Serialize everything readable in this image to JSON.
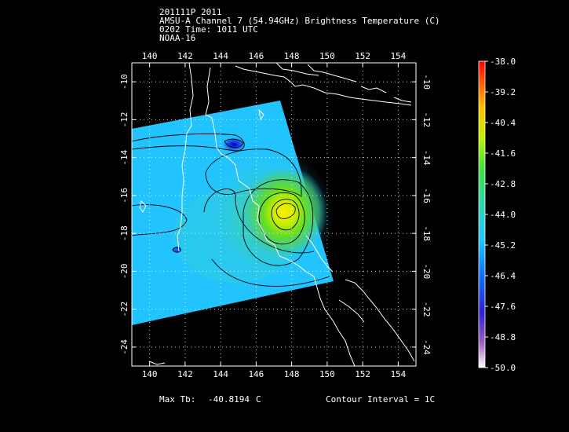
{
  "header": {
    "line1": "201111P 2011",
    "line2": "AMSU-A Channel 7 (54.94GHz) Brightness Temperature (C)",
    "line3": "0202 Time: 1011 UTC",
    "line4": "NOAA-16"
  },
  "axes": {
    "lon_ticks": [
      "140",
      "142",
      "144",
      "146",
      "148",
      "150",
      "152",
      "154"
    ],
    "lat_ticks": [
      "-10",
      "-12",
      "-14",
      "-16",
      "-18",
      "-20",
      "-22",
      "-24"
    ],
    "lon_range": [
      139.0,
      155.0
    ],
    "lat_range": [
      -9.0,
      -25.0
    ]
  },
  "colorbar": {
    "labels": [
      "-38.0",
      "-39.2",
      "-40.4",
      "-41.6",
      "-42.8",
      "-44.0",
      "-45.2",
      "-46.4",
      "-47.6",
      "-48.8",
      "-50.0"
    ],
    "range": [
      -38.0,
      -50.0
    ]
  },
  "footer": {
    "max_label": "Max Tb:",
    "max_value": "-40.8194",
    "max_unit": "C",
    "contour_label": "Contour Interval = 1C"
  },
  "colors": {
    "background": "#000000",
    "coastline": "#ffffff",
    "swath_base": "#22c4ff"
  }
}
